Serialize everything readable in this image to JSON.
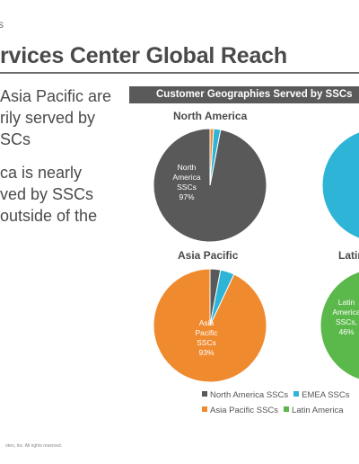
{
  "header": {
    "kicker": "s",
    "title": "rvices Center Global Reach"
  },
  "bullets": [
    "Asia Pacific are\nrily served by\nSCs",
    "ca is nearly\nved by SSCs\noutside of the"
  ],
  "panel": {
    "header": "Customer Geographies Served by SSCs"
  },
  "colors": {
    "north_america": "#595959",
    "emea": "#2db4d6",
    "asia_pacific": "#f08a2e",
    "latin_america": "#5bb84a"
  },
  "chart_data": [
    {
      "type": "pie",
      "title": "North America",
      "slices": [
        {
          "series": "North America SSCs",
          "value": 97,
          "label_lines": [
            "North",
            "America",
            "SSCs",
            "97%"
          ]
        },
        {
          "series": "EMEA SSCs",
          "value": 2
        },
        {
          "series": "Asia Pacific SSCs",
          "value": 1
        }
      ]
    },
    {
      "type": "pie",
      "title": "Asia Pacific",
      "slices": [
        {
          "series": "North America SSCs",
          "value": 3
        },
        {
          "series": "EMEA SSCs",
          "value": 4
        },
        {
          "series": "Asia Pacific SSCs",
          "value": 93,
          "label_lines": [
            "Asia",
            "Pacific",
            "SSCs",
            "93%"
          ]
        }
      ]
    },
    {
      "type": "pie",
      "title": "Latin",
      "slices": [
        {
          "series": "Latin America SSCs",
          "value": 46,
          "label_lines": [
            "Latin",
            "America",
            "SSCs,",
            "46%"
          ]
        }
      ]
    }
  ],
  "legend": {
    "row1": [
      {
        "label": "North America SSCs",
        "color_key": "north_america"
      },
      {
        "label": "EMEA SSCs",
        "color_key": "emea"
      }
    ],
    "row2": [
      {
        "label": "Asia Pacific SSCs",
        "color_key": "asia_pacific"
      },
      {
        "label": "Latin America",
        "color_key": "latin_america"
      }
    ]
  },
  "footer": "oten, Inc. All rights reserved."
}
